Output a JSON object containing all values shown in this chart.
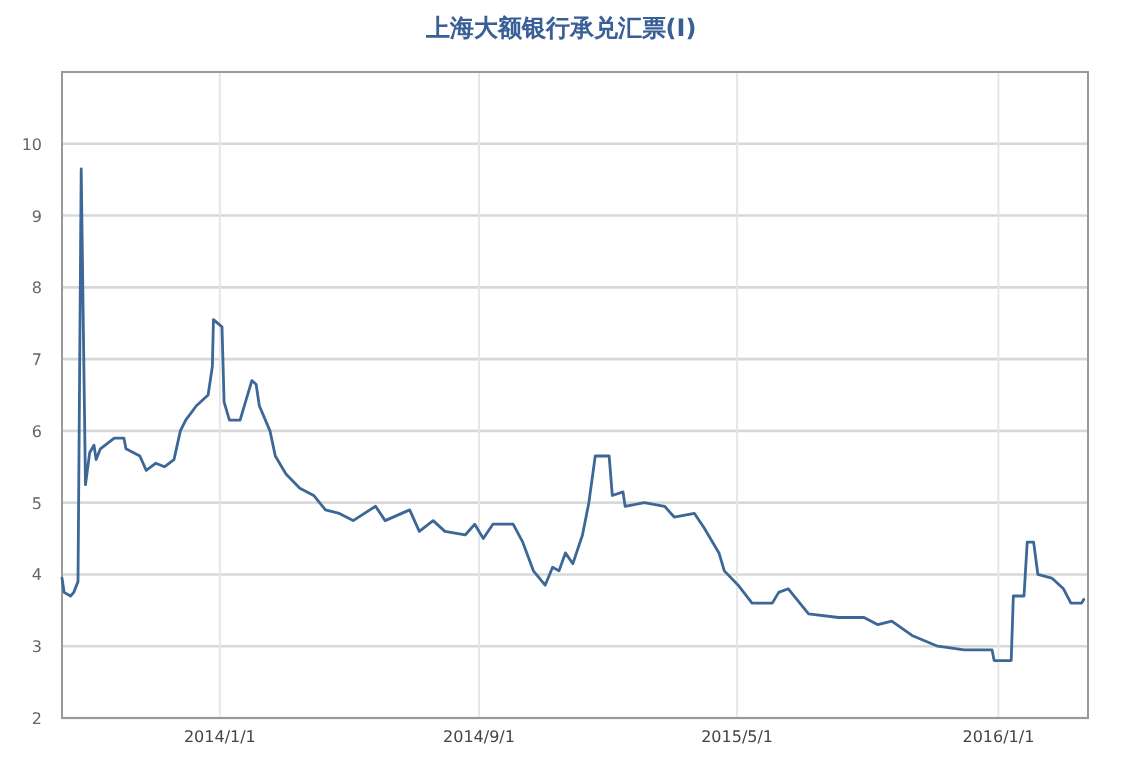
{
  "chart_data": {
    "type": "line",
    "title": "上海大额银行承兑汇票(Ⅰ)",
    "xlim": [
      "2013-08-06",
      "2016-03-25"
    ],
    "xticks": [
      {
        "value": "2014-01-01",
        "label": "2014/1/1"
      },
      {
        "value": "2014-09-01",
        "label": "2014/9/1"
      },
      {
        "value": "2015-05-01",
        "label": "2015/5/1"
      },
      {
        "value": "2016-01-01",
        "label": "2016/1/1"
      }
    ],
    "ylim": [
      2,
      11
    ],
    "yticks": [
      2,
      3,
      4,
      5,
      6,
      7,
      8,
      9,
      10
    ],
    "grid": true,
    "marker": "none",
    "line_style": "solid",
    "series": [
      {
        "color": "#3c6796",
        "x": [
          "2013-08-06",
          "2013-08-08",
          "2013-08-14",
          "2013-08-17",
          "2013-08-21",
          "2013-08-24",
          "2013-08-28",
          "2013-09-01",
          "2013-09-05",
          "2013-09-07",
          "2013-09-11",
          "2013-09-24",
          "2013-10-03",
          "2013-10-05",
          "2013-10-18",
          "2013-10-24",
          "2013-11-02",
          "2013-11-10",
          "2013-11-19",
          "2013-11-25",
          "2013-11-30",
          "2013-12-10",
          "2013-12-21",
          "2013-12-25",
          "2013-12-26",
          "2014-01-03",
          "2014-01-05",
          "2014-01-10",
          "2014-01-20",
          "2014-01-25",
          "2014-01-31",
          "2014-02-04",
          "2014-02-07",
          "2014-02-17",
          "2014-02-22",
          "2014-03-04",
          "2014-03-17",
          "2014-03-30",
          "2014-04-10",
          "2014-04-23",
          "2014-05-06",
          "2014-05-27",
          "2014-06-05",
          "2014-06-28",
          "2014-07-07",
          "2014-07-20",
          "2014-07-31",
          "2014-08-19",
          "2014-08-28",
          "2014-09-05",
          "2014-09-14",
          "2014-10-03",
          "2014-10-12",
          "2014-10-22",
          "2014-11-02",
          "2014-11-09",
          "2014-11-15",
          "2014-11-21",
          "2014-11-28",
          "2014-12-07",
          "2014-12-13",
          "2014-12-19",
          "2015-01-01",
          "2015-01-04",
          "2015-01-14",
          "2015-01-16",
          "2015-02-03",
          "2015-02-22",
          "2015-03-03",
          "2015-03-22",
          "2015-03-31",
          "2015-04-14",
          "2015-04-19",
          "2015-05-02",
          "2015-05-15",
          "2015-06-03",
          "2015-06-09",
          "2015-06-18",
          "2015-07-07",
          "2015-08-04",
          "2015-08-28",
          "2015-09-10",
          "2015-09-23",
          "2015-10-12",
          "2015-11-05",
          "2015-11-30",
          "2015-12-26",
          "2015-12-28",
          "2016-01-13",
          "2016-01-15",
          "2016-01-25",
          "2016-01-28",
          "2016-02-03",
          "2016-02-07",
          "2016-02-20",
          "2016-03-02",
          "2016-03-09",
          "2016-03-19",
          "2016-03-21"
        ],
        "values": [
          3.95,
          3.75,
          3.7,
          3.75,
          3.9,
          9.65,
          5.25,
          5.7,
          5.8,
          5.6,
          5.75,
          5.9,
          5.9,
          5.75,
          5.65,
          5.45,
          5.55,
          5.5,
          5.6,
          6.0,
          6.15,
          6.35,
          6.5,
          6.9,
          7.55,
          7.45,
          6.4,
          6.15,
          6.15,
          6.4,
          6.7,
          6.65,
          6.35,
          6.0,
          5.65,
          5.4,
          5.2,
          5.1,
          4.9,
          4.85,
          4.75,
          4.95,
          4.75,
          4.9,
          4.6,
          4.75,
          4.6,
          4.55,
          4.7,
          4.5,
          4.7,
          4.7,
          4.45,
          4.05,
          3.85,
          4.1,
          4.05,
          4.3,
          4.15,
          4.55,
          5.0,
          5.65,
          5.65,
          5.1,
          5.15,
          4.95,
          5.0,
          4.95,
          4.8,
          4.85,
          4.65,
          4.3,
          4.05,
          3.85,
          3.6,
          3.6,
          3.75,
          3.8,
          3.45,
          3.4,
          3.4,
          3.3,
          3.35,
          3.15,
          3.0,
          2.95,
          2.95,
          2.8,
          2.8,
          3.7,
          3.7,
          4.45,
          4.45,
          4.0,
          3.95,
          3.8,
          3.6,
          3.6,
          3.65
        ]
      }
    ]
  }
}
